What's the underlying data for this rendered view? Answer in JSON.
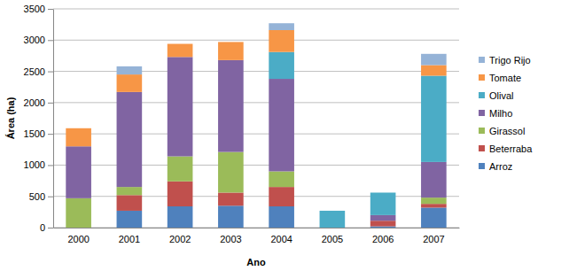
{
  "chart_data": {
    "type": "bar",
    "stacked": true,
    "grid": true,
    "legend": "right",
    "x_label": "Ano",
    "y_label": "Área (ha)",
    "categories": [
      "2000",
      "2001",
      "2002",
      "2003",
      "2004",
      "2005",
      "2006",
      "2007"
    ],
    "ylim": [
      0,
      3500
    ],
    "yticks": [
      0,
      500,
      1000,
      1500,
      2000,
      2500,
      3000,
      3500
    ],
    "series": [
      {
        "name": "Arroz",
        "color": "#4f81bd",
        "values": [
          0,
          270,
          340,
          350,
          340,
          0,
          20,
          320
        ]
      },
      {
        "name": "Beterraba",
        "color": "#c0504d",
        "values": [
          0,
          250,
          400,
          210,
          310,
          0,
          90,
          60
        ]
      },
      {
        "name": "Girassol",
        "color": "#9bbb59",
        "values": [
          470,
          130,
          400,
          650,
          250,
          0,
          0,
          100
        ]
      },
      {
        "name": "Milho",
        "color": "#8064a2",
        "values": [
          830,
          1520,
          1590,
          1470,
          1480,
          0,
          90,
          570
        ]
      },
      {
        "name": "Olival",
        "color": "#4bacc6",
        "values": [
          0,
          0,
          0,
          0,
          430,
          270,
          360,
          1380
        ]
      },
      {
        "name": "Tomate",
        "color": "#f79646",
        "values": [
          290,
          280,
          210,
          290,
          350,
          0,
          0,
          170
        ]
      },
      {
        "name": "Trigo Rijo",
        "color": "#95b3d7",
        "values": [
          0,
          130,
          0,
          0,
          110,
          0,
          0,
          180
        ]
      }
    ]
  }
}
